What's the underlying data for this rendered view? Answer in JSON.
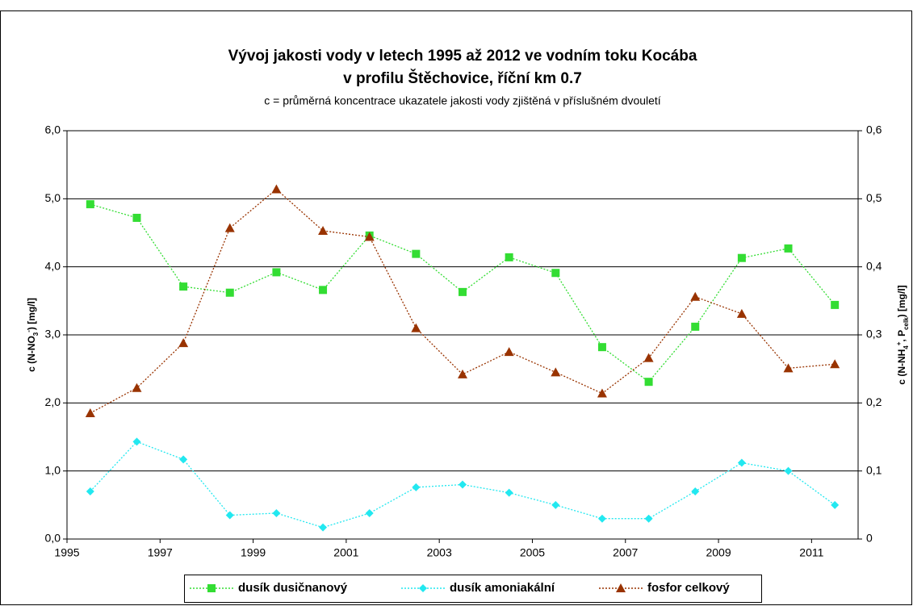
{
  "chart_data": {
    "type": "line",
    "title": "Vývoj jakosti vody v letech 1995 až 2012 ve vodním toku Kocába",
    "title_line2": "v profilu Štěchovice, říční km 0.7",
    "subtitle": "c = průměrná koncentrace ukazatele jakosti vody zjištěná v příslušném dvouletí",
    "ylabel_parts": [
      "c (N-NO",
      "3",
      "-",
      ") [mg/l]"
    ],
    "y2label_parts": [
      "c (N-NH",
      "4",
      "+",
      ", P",
      "celk",
      ") [mg/l]"
    ],
    "x": [
      1995.5,
      1996.5,
      1997.5,
      1998.5,
      1999.5,
      2000.5,
      2001.5,
      2002.5,
      2003.5,
      2004.5,
      2005.5,
      2006.5,
      2007.5,
      2008.5,
      2009.5,
      2010.5,
      2011.5
    ],
    "xlim": [
      1995,
      2012
    ],
    "xticks": [
      1995,
      1997,
      1999,
      2001,
      2003,
      2005,
      2007,
      2009,
      2011
    ],
    "ylim": [
      0,
      6
    ],
    "yticks": [
      {
        "value": 0,
        "label": "0,0"
      },
      {
        "value": 1,
        "label": "1,0"
      },
      {
        "value": 2,
        "label": "2,0"
      },
      {
        "value": 3,
        "label": "3,0"
      },
      {
        "value": 4,
        "label": "4,0"
      },
      {
        "value": 5,
        "label": "5,0"
      },
      {
        "value": 6,
        "label": "6,0"
      }
    ],
    "y2lim": [
      0,
      0.6
    ],
    "y2ticks": [
      0,
      {
        "value": 0.1,
        "label": "0,1"
      },
      {
        "value": 0.2,
        "label": "0,2"
      },
      {
        "value": 0.3,
        "label": "0,3"
      },
      {
        "value": 0.4,
        "label": "0,4"
      },
      {
        "value": 0.5,
        "label": "0,5"
      },
      {
        "value": 0.6,
        "label": "0,6"
      }
    ],
    "grid": true,
    "legend": "bottom",
    "series": [
      {
        "name": "dusík dusičnanový",
        "color": "#33dd33",
        "marker": "square",
        "axis": "y",
        "values": [
          4.92,
          4.72,
          3.71,
          3.62,
          3.92,
          3.66,
          4.46,
          4.19,
          3.63,
          4.14,
          3.91,
          2.82,
          2.31,
          3.12,
          4.13,
          4.27,
          3.44
        ]
      },
      {
        "name": "dusík amoniakální",
        "color": "#22e8f0",
        "marker": "diamond",
        "axis": "y2",
        "values": [
          0.07,
          0.143,
          0.117,
          0.035,
          0.038,
          0.017,
          0.038,
          0.076,
          0.08,
          0.068,
          0.05,
          0.03,
          0.03,
          0.07,
          0.112,
          0.1,
          0.05
        ]
      },
      {
        "name": "fosfor celkový",
        "color": "#993300",
        "marker": "triangle",
        "axis": "y2",
        "values": [
          0.185,
          0.222,
          0.288,
          0.457,
          0.514,
          0.453,
          0.444,
          0.31,
          0.242,
          0.275,
          0.245,
          0.214,
          0.266,
          0.356,
          0.331,
          0.251,
          0.257
        ]
      }
    ]
  }
}
